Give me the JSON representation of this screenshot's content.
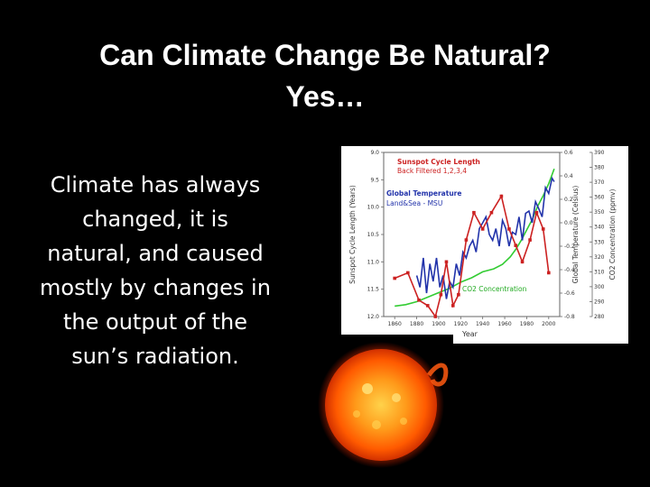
{
  "slide": {
    "title_lines": [
      "Can Climate Change Be Natural?",
      "Yes…"
    ],
    "body_lines": [
      "Climate has always",
      "changed, it is",
      "natural, and caused",
      "mostly by changes in",
      "the output of the",
      "sun’s radiation."
    ]
  },
  "chart_data": {
    "type": "line",
    "xlabel": "Year",
    "x_ticks": [
      "1860",
      "1880",
      "1900",
      "1920",
      "1940",
      "1960",
      "1980",
      "2000"
    ],
    "left_axis": {
      "label": "Sunspot Cycle Length (Years)",
      "ticks": [
        "9.0",
        "9.5",
        "10.0",
        "10.5",
        "11.0",
        "11.5",
        "12.0"
      ],
      "range": [
        12.0,
        9.0
      ],
      "inverted": true
    },
    "temp_axis": {
      "label": "Global Temperature (Celsius)",
      "ticks": [
        "0.6",
        "0.4",
        "0.2",
        "0.0",
        "-0.2",
        "-0.4",
        "-0.6",
        "-0.8"
      ],
      "range": [
        -0.8,
        0.6
      ]
    },
    "co2_axis": {
      "label": "CO2 Concentration (ppmv)",
      "ticks": [
        "390",
        "380",
        "370",
        "360",
        "350",
        "340",
        "330",
        "320",
        "310",
        "300",
        "290",
        "280"
      ],
      "range": [
        280,
        390
      ]
    },
    "series": [
      {
        "name": "Sunspot Cycle Length",
        "sublabel": "Back Filtered 1,2,3,4",
        "color": "#cc2222",
        "x": [
          1860,
          1872,
          1882,
          1890,
          1897,
          1902,
          1907,
          1913,
          1918,
          1925,
          1932,
          1940,
          1948,
          1957,
          1964,
          1970,
          1976,
          1983,
          1989,
          1995,
          2000
        ],
        "y": [
          11.3,
          11.2,
          11.7,
          11.8,
          12.0,
          11.6,
          11.0,
          11.8,
          11.6,
          10.6,
          10.1,
          10.4,
          10.1,
          9.8,
          10.4,
          10.7,
          11.0,
          10.6,
          10.1,
          10.4,
          11.2
        ]
      },
      {
        "name": "Global Temperature",
        "sublabel": "Land&Sea - MSU",
        "color": "#2233aa",
        "x": [
          1880,
          1883,
          1886,
          1889,
          1892,
          1895,
          1898,
          1901,
          1904,
          1907,
          1910,
          1913,
          1916,
          1919,
          1922,
          1925,
          1928,
          1931,
          1934,
          1937,
          1940,
          1943,
          1946,
          1949,
          1952,
          1955,
          1958,
          1961,
          1964,
          1967,
          1970,
          1973,
          1976,
          1979,
          1982,
          1985,
          1988,
          1991,
          1994,
          1997,
          2000,
          2003,
          2005
        ],
        "y": [
          -0.45,
          -0.55,
          -0.3,
          -0.6,
          -0.35,
          -0.5,
          -0.3,
          -0.55,
          -0.45,
          -0.65,
          -0.5,
          -0.55,
          -0.35,
          -0.45,
          -0.25,
          -0.3,
          -0.2,
          -0.15,
          -0.25,
          -0.05,
          0.0,
          0.05,
          -0.1,
          -0.15,
          -0.05,
          -0.2,
          0.02,
          -0.05,
          -0.2,
          -0.08,
          -0.1,
          0.05,
          -0.15,
          0.08,
          0.1,
          0.0,
          0.18,
          0.12,
          0.05,
          0.3,
          0.25,
          0.38,
          0.35
        ]
      },
      {
        "name": "CO2 Concentration",
        "color": "#33cc33",
        "x": [
          1860,
          1870,
          1880,
          1890,
          1900,
          1910,
          1920,
          1930,
          1940,
          1950,
          1958,
          1965,
          1970,
          1975,
          1980,
          1985,
          1990,
          1995,
          2000,
          2005
        ],
        "y": [
          287,
          288,
          290,
          293,
          296,
          299,
          303,
          306,
          310,
          312,
          315,
          320,
          325,
          331,
          338,
          345,
          354,
          361,
          369,
          379
        ]
      }
    ]
  }
}
